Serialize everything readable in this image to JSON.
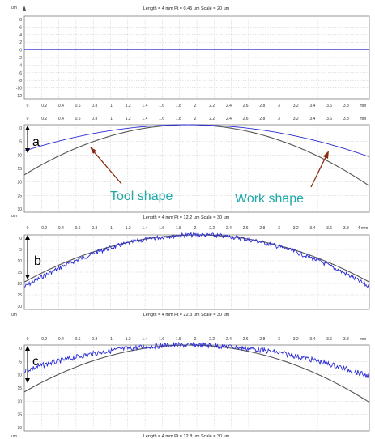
{
  "chart_data": [
    {
      "type": "line",
      "title": "Length = 4 mm  Pt = 0.45 um  Scale = 20 um",
      "yunit": "um",
      "xunit": "mm",
      "xlim": [
        0,
        4
      ],
      "ylim": [
        -12,
        8
      ],
      "yticks": [
        "8",
        "6",
        "4",
        "2",
        "0",
        "-2",
        "-4",
        "-6",
        "-8",
        "-10",
        "-12"
      ],
      "xticks": [
        "0",
        "0.2",
        "0.4",
        "0.6",
        "0.8",
        "1",
        "1.2",
        "1.4",
        "1.6",
        "1.8",
        "2",
        "2.2",
        "2.4",
        "2.6",
        "2.8",
        "3",
        "3.2",
        "3.4",
        "3.6",
        "3.8",
        "mm"
      ],
      "grid": true,
      "series": [
        {
          "color": "#2b2bd6",
          "kind": "flat",
          "level": 0
        }
      ]
    },
    {
      "type": "line",
      "panel_label": "a",
      "ylim": [
        30,
        0
      ],
      "yticks": [
        "0",
        "5",
        "10",
        "15",
        "20",
        "25",
        "30"
      ],
      "xticks": [
        "0",
        "0.2",
        "0.4",
        "0.6",
        "0.8",
        "1",
        "1.2",
        "1.4",
        "1.6",
        "1.8",
        "2",
        "2.2",
        "2.4",
        "2.6",
        "2.8",
        "3",
        "3.2",
        "3.4",
        "3.6",
        "3.8",
        "mm"
      ],
      "grid": true,
      "annotations": [
        "Tool shape",
        "Work shape"
      ],
      "series": [
        {
          "color": "#555555",
          "kind": "arc",
          "center": 1.9,
          "edge_depth": 21
        },
        {
          "color": "#2b2bd6",
          "kind": "arc",
          "center": 1.9,
          "edge_depth": 11
        }
      ]
    },
    {
      "type": "line",
      "panel_label": "b",
      "title": "Length = 4 mm  Pt = 12.2 um  Scale = 30 um",
      "yunit": "um",
      "ylim": [
        30,
        0
      ],
      "yticks": [
        "0",
        "5",
        "10",
        "15",
        "20",
        "25",
        "30"
      ],
      "xticks": [
        "0",
        "0.2",
        "0.4",
        "0.6",
        "0.8",
        "1",
        "1.2",
        "1.4",
        "1.6",
        "1.8",
        "2",
        "2.2",
        "2.4",
        "2.6",
        "2.8",
        "3",
        "3.2",
        "3.4",
        "3.6",
        "3.8",
        "4 mm"
      ],
      "grid": true,
      "series": [
        {
          "color": "#555555",
          "kind": "arc",
          "center": 2.0,
          "edge_depth": 19
        },
        {
          "color": "#2b2bd6",
          "kind": "noisy-arc",
          "center": 2.0,
          "edge_depth": 21,
          "noise": 0.9
        }
      ]
    },
    {
      "type": "line",
      "panel_label": "c",
      "title": "Length = 4 mm  Pt = 22.3 um  Scale = 30 um",
      "yunit": "um",
      "ylim": [
        30,
        0
      ],
      "yticks": [
        "0",
        "5",
        "10",
        "15",
        "20",
        "25",
        "30"
      ],
      "xticks": [
        "0",
        "0.2",
        "0.4",
        "0.6",
        "0.8",
        "1",
        "1.2",
        "1.4",
        "1.6",
        "1.8",
        "2",
        "2.2",
        "2.4",
        "2.6",
        "2.8",
        "3",
        "3.2",
        "3.4",
        "3.6",
        "3.8",
        "mm"
      ],
      "grid": true,
      "series": [
        {
          "color": "#555555",
          "kind": "arc",
          "center": 1.9,
          "edge_depth": 20
        },
        {
          "color": "#2b2bd6",
          "kind": "noisy-arc",
          "center": 1.9,
          "edge_depth": 11,
          "noise": 0.9
        }
      ]
    }
  ],
  "footer": {
    "unit": "um",
    "title": "Length = 4 mm  Pt = 12.8 um  Scale = 30 um"
  },
  "colors": {
    "grid": "#c8c8c8",
    "frame": "#7a7a7a",
    "arrow": "#8b2a12",
    "annotation": "#1fa8a8"
  }
}
